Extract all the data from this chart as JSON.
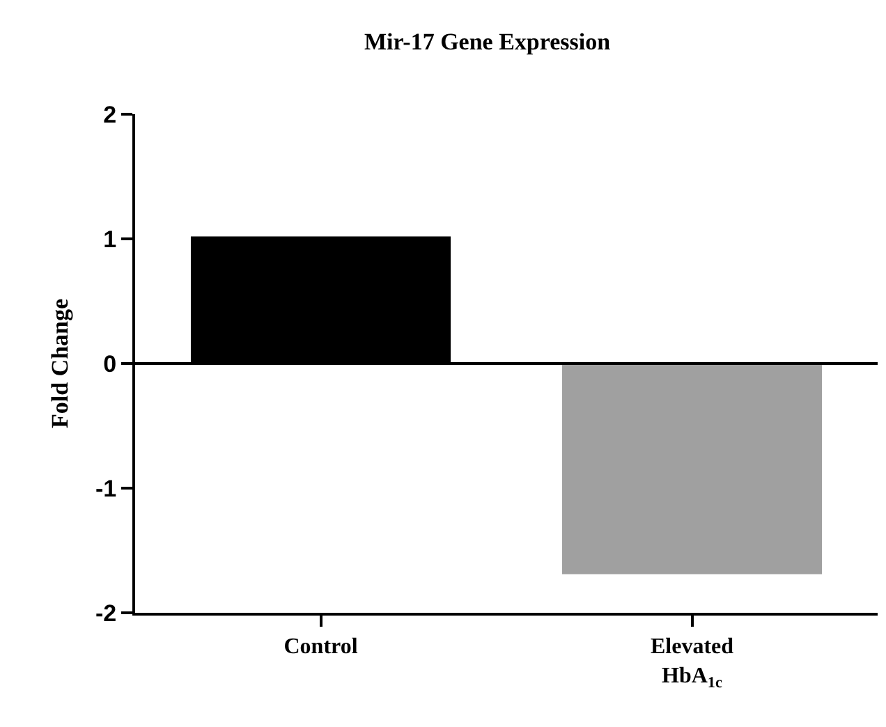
{
  "chart_data": {
    "type": "bar",
    "title": "Mir-17 Gene Expression",
    "ylabel": "Fold Change",
    "categories": [
      "Control",
      "Elevated HbA$_{1c}$"
    ],
    "values": [
      1.02,
      -1.69
    ],
    "colors": [
      "#000000",
      "#a0a0a0"
    ],
    "ylim": [
      -2,
      2
    ],
    "yticks": [
      -2,
      -1,
      0,
      1,
      2
    ],
    "ref_lines": [
      {
        "axis": "y",
        "value": 0,
        "color": "#000000",
        "line_style": "solid"
      }
    ]
  }
}
